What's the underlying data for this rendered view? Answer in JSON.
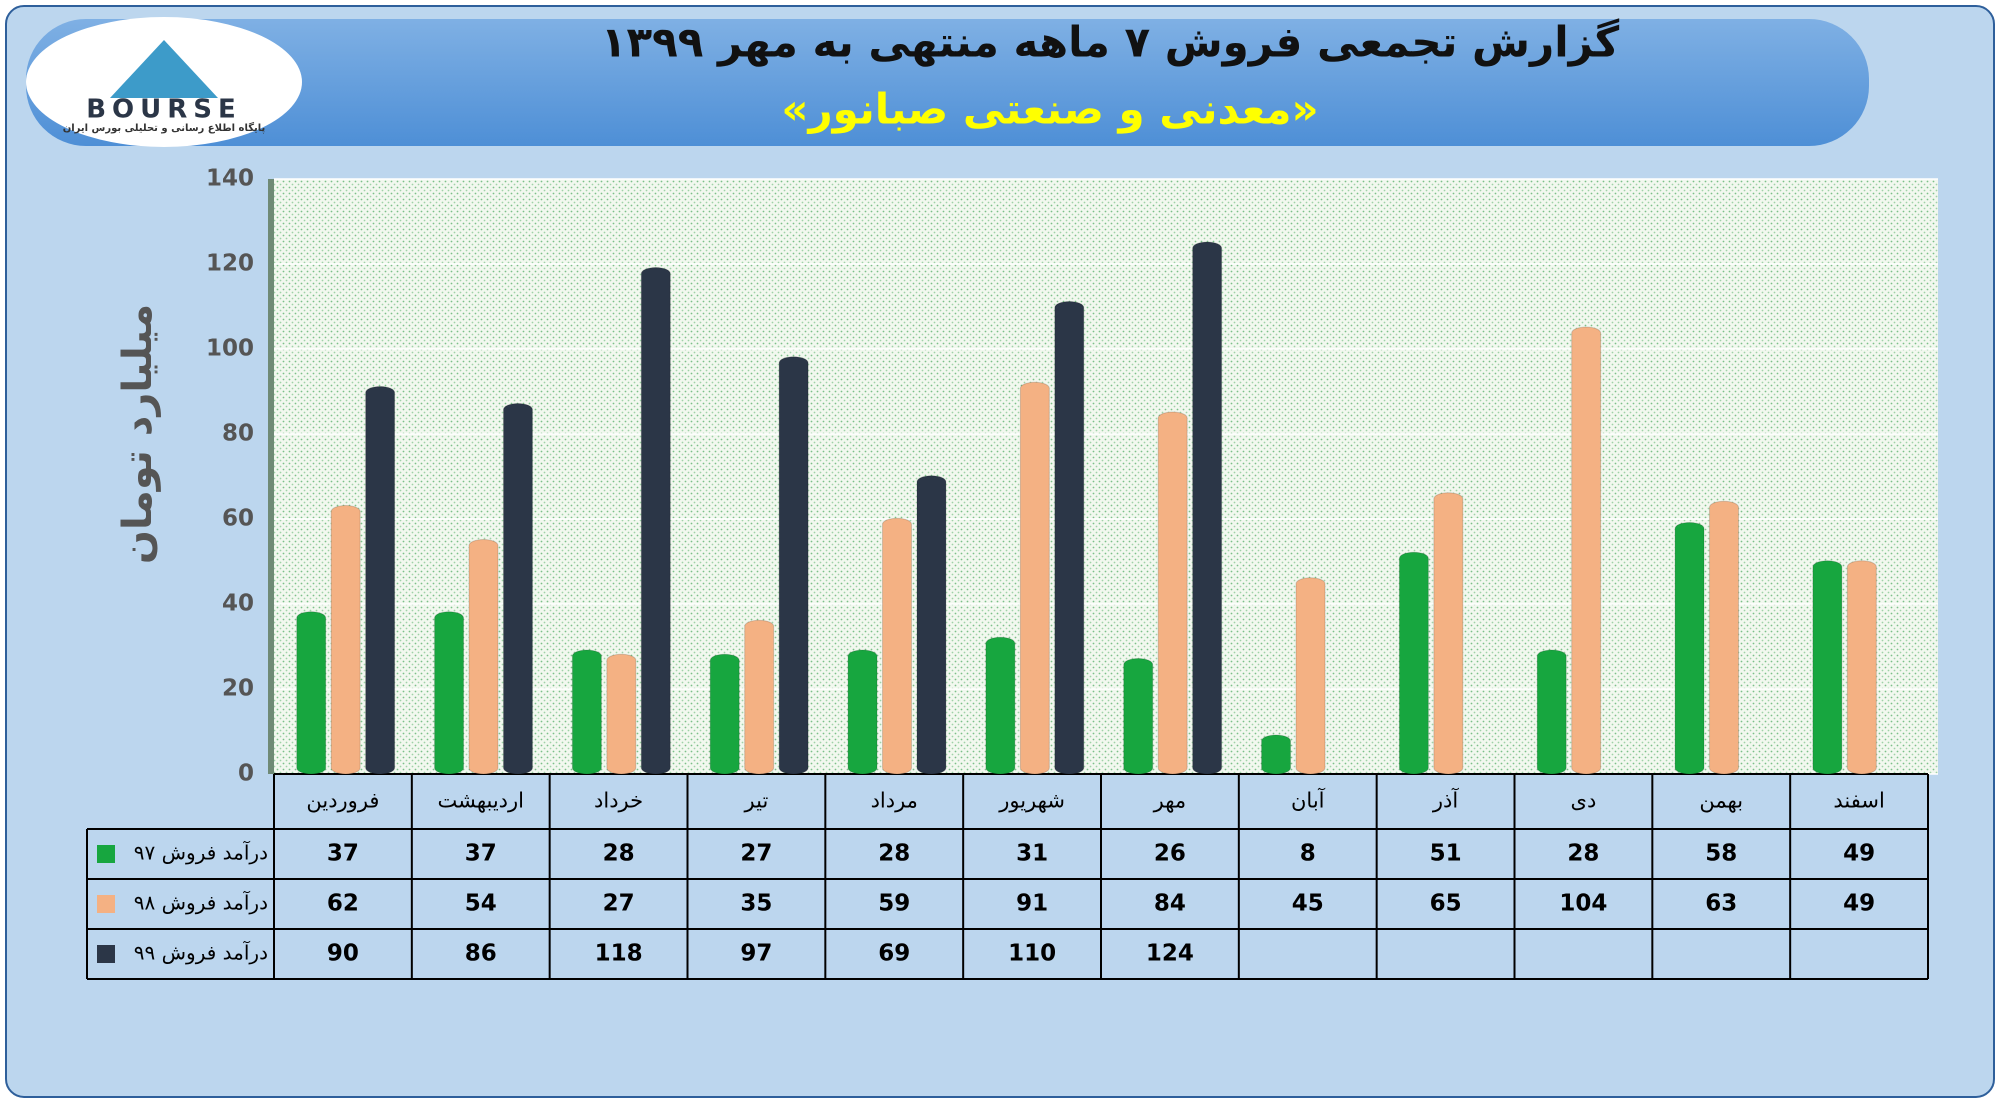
{
  "logo": {
    "name": "BOURSE",
    "tagline": "پایگاه اطلاع رسانی و تحلیلی بورس ایران"
  },
  "chart_data": {
    "type": "bar",
    "title": "گزارش تجمعی فروش ۷ ماهه منتهی به مهر ۱۳۹۹",
    "subtitle": "«معدنی و صنعتی صبانور»",
    "y_label": "میلیارد تومان",
    "categories": [
      "فروردین",
      "اردیبهشت",
      "خرداد",
      "تیر",
      "مرداد",
      "شهریور",
      "مهر",
      "آبان",
      "آذر",
      "دی",
      "بهمن",
      "اسفند"
    ],
    "series": [
      {
        "name": "درآمد فروش ۹۷",
        "color": "#17a63f",
        "values": [
          37,
          37,
          28,
          27,
          28,
          31,
          26,
          8,
          51,
          28,
          58,
          49
        ]
      },
      {
        "name": "درآمد فروش ۹۸",
        "color": "#f4b183",
        "values": [
          62,
          54,
          27,
          35,
          59,
          91,
          84,
          45,
          65,
          104,
          63,
          49
        ]
      },
      {
        "name": "درآمد فروش ۹۹",
        "color": "#2b3647",
        "values": [
          90,
          86,
          118,
          97,
          69,
          110,
          124,
          null,
          null,
          null,
          null,
          null
        ]
      }
    ],
    "ylim": [
      0,
      140
    ],
    "yticks": [
      0,
      20,
      40,
      60,
      80,
      100,
      120,
      140
    ],
    "grid": true
  }
}
